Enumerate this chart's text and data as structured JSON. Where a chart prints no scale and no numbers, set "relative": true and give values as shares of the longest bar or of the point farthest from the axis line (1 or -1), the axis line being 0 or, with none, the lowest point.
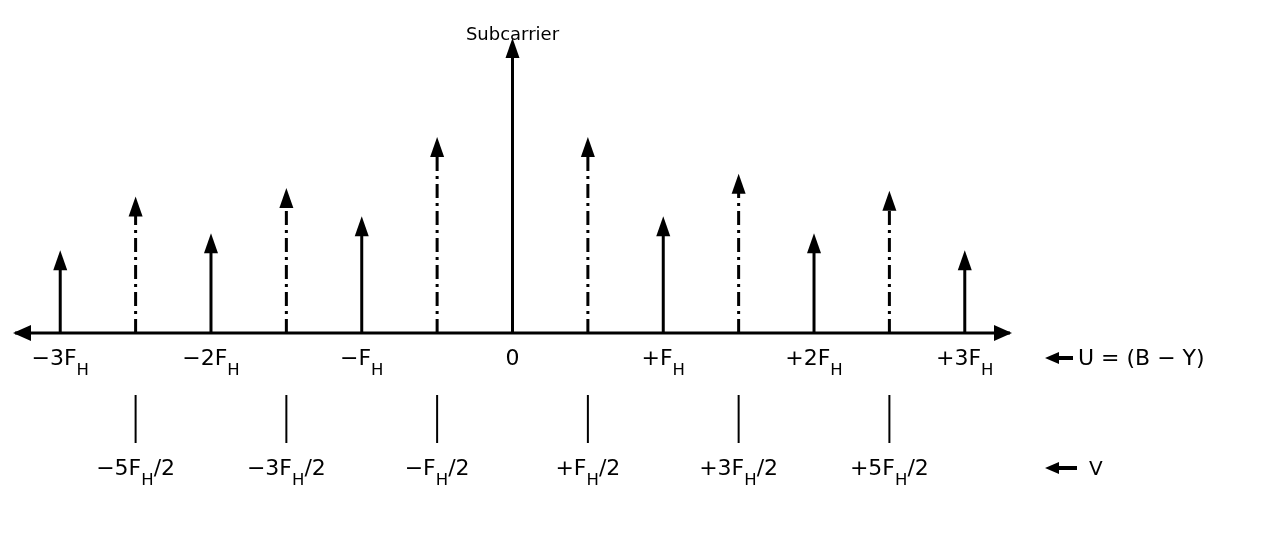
{
  "chart_data": {
    "type": "lollipop",
    "relative": true,
    "xlabel": "U = (B − Y)",
    "x2label": "V",
    "marker": "triangle",
    "categories": [
      "−3F$_{H}$",
      "−5F$_{H}$/2",
      "−2F$_{H}$",
      "−3F$_{H}$/2",
      "−F$_{H}$",
      "−F$_{H}$/2",
      "0",
      "+F$_{H}$/2",
      "+F$_{H}$",
      "+3F$_{H}$/2",
      "+2F$_{H}$",
      "+5F$_{H}$/2",
      "+3F$_{H}$"
    ],
    "series": [
      {
        "color": "#000000",
        "line_style": "solid",
        "values": [
          0.25,
          null,
          0.31,
          null,
          0.37,
          null,
          1,
          null,
          0.37,
          null,
          0.31,
          null,
          0.25
        ]
      },
      {
        "color": "#000000",
        "line_style": "dashed",
        "values": [
          null,
          0.44,
          null,
          0.47,
          null,
          0.65,
          null,
          0.65,
          null,
          0.52,
          null,
          0.46,
          null
        ]
      }
    ],
    "annotations": [
      {
        "text": "Subcarrier",
        "x": "0",
        "y": 1
      }
    ]
  }
}
